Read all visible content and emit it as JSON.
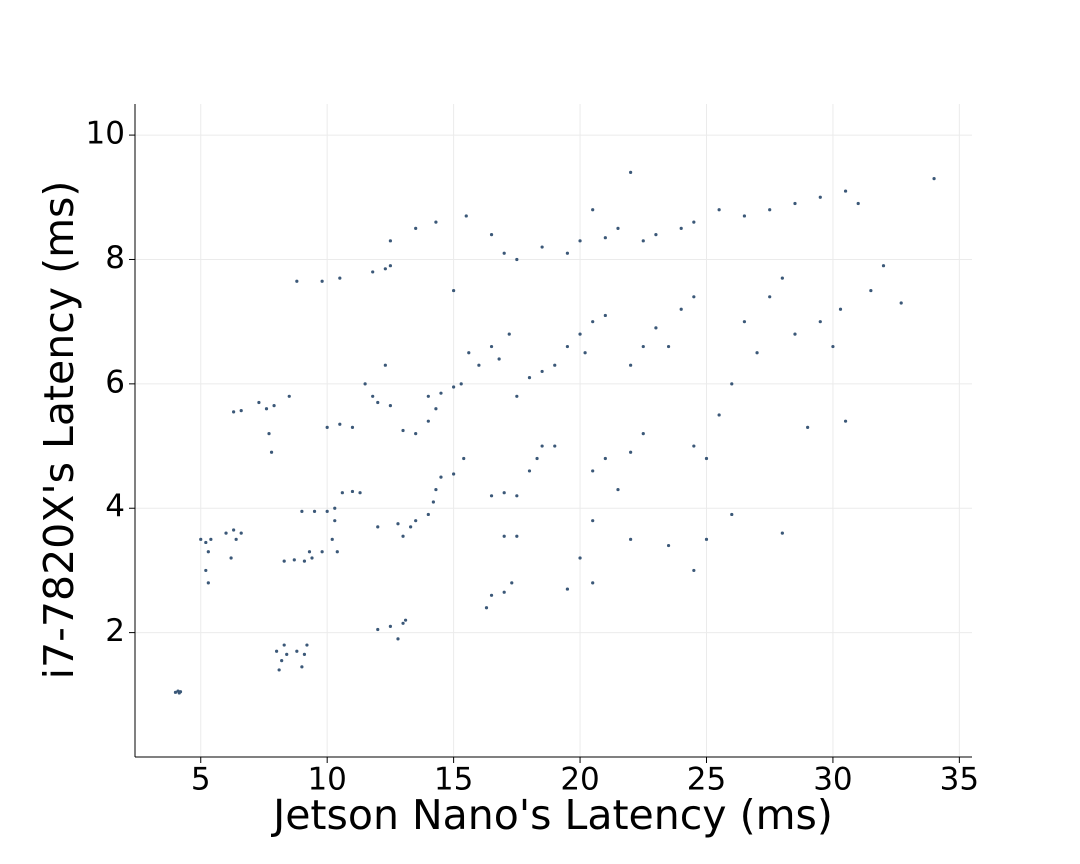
{
  "chart_data": {
    "type": "scatter",
    "x_label": "Jetson Nano's Latency (ms)",
    "y_label": "i7-7820X's Latency (ms)",
    "xlim": [
      2.4,
      35.5
    ],
    "ylim": [
      0,
      10.5
    ],
    "xticks": [
      5,
      10,
      15,
      20,
      25,
      30,
      35
    ],
    "yticks": [
      2,
      4,
      6,
      8,
      10
    ],
    "grid": true,
    "color": "#3b5878",
    "x": [
      4.0,
      4.1,
      4.2,
      4.15,
      5.0,
      5.2,
      5.4,
      5.3,
      5.2,
      5.3,
      6.0,
      6.3,
      6.6,
      6.2,
      6.4,
      6.3,
      6.6,
      7.3,
      7.6,
      7.9,
      7.7,
      7.8,
      8.5,
      8.0,
      8.2,
      8.4,
      8.1,
      8.3,
      8.8,
      9.1,
      9.2,
      9.0,
      8.3,
      8.7,
      9.1,
      9.4,
      9.3,
      9.8,
      9.0,
      9.5,
      10.0,
      10.3,
      10.2,
      10.4,
      10.3,
      10.6,
      11.0,
      11.3,
      8.8,
      9.8,
      10.5,
      10.0,
      10.5,
      11.0,
      11.5,
      12.0,
      12.5,
      12.3,
      11.8,
      12.5,
      12.3,
      11.8,
      12.5,
      12.5,
      13.0,
      12.0,
      13.1,
      12.8,
      12.0,
      12.8,
      13.3,
      13.0,
      13.5,
      13.5,
      13.0,
      14.0,
      14.0,
      14.2,
      14.5,
      15.0,
      15.4,
      14.3,
      14.0,
      14.5,
      15.0,
      15.3,
      14.3,
      16.0,
      15.6,
      16.5,
      16.8,
      17.2,
      13.5,
      14.3,
      15.5,
      16.5,
      17.0,
      17.5,
      15.0,
      16.5,
      17.0,
      16.3,
      17.3,
      17.0,
      17.5,
      16.5,
      17.0,
      17.5,
      18.0,
      18.3,
      18.5,
      19.0,
      17.5,
      18.0,
      18.5,
      19.0,
      19.5,
      20.0,
      20.5,
      21.0,
      20.2,
      18.5,
      19.5,
      20.0,
      21.0,
      20.5,
      22.0,
      21.5,
      19.5,
      20.5,
      20.0,
      20.5,
      21.0,
      22.0,
      22.5,
      21.5,
      20.5,
      22.0,
      22.5,
      23.0,
      23.5,
      24.0,
      22.0,
      24.5,
      22.5,
      23.0,
      24.0,
      24.5,
      25.5,
      26.5,
      27.5,
      28.5,
      29.5,
      30.5,
      31.0,
      24.5,
      25.0,
      25.5,
      26.0,
      26.5,
      27.0,
      27.5,
      28.0,
      28.5,
      29.5,
      30.0,
      23.5,
      24.5,
      25.0,
      26.0,
      28.0,
      30.5,
      29.0,
      32.0,
      32.7,
      34.0,
      31.5,
      30.3
    ],
    "values": [
      1.04,
      1.06,
      1.05,
      1.03,
      3.5,
      3.45,
      3.5,
      3.3,
      3.0,
      2.8,
      3.6,
      3.65,
      3.6,
      3.2,
      3.5,
      5.55,
      5.57,
      5.7,
      5.6,
      5.65,
      5.2,
      4.9,
      5.8,
      1.7,
      1.55,
      1.65,
      1.4,
      1.8,
      1.7,
      1.65,
      1.8,
      1.45,
      3.15,
      3.17,
      3.15,
      3.2,
      3.3,
      3.3,
      3.95,
      3.95,
      3.95,
      3.8,
      3.5,
      3.3,
      4.0,
      4.25,
      4.27,
      4.25,
      7.65,
      7.65,
      7.7,
      5.3,
      5.35,
      5.3,
      6.0,
      5.7,
      5.65,
      6.3,
      5.8,
      7.9,
      7.85,
      7.8,
      8.3,
      2.1,
      2.15,
      2.05,
      2.2,
      1.9,
      3.7,
      3.75,
      3.7,
      3.55,
      3.8,
      5.2,
      5.25,
      5.4,
      3.9,
      4.1,
      4.5,
      4.55,
      4.8,
      4.3,
      5.8,
      5.85,
      5.95,
      6.0,
      5.6,
      6.3,
      6.5,
      6.6,
      6.4,
      6.8,
      8.5,
      8.6,
      8.7,
      8.4,
      8.1,
      8.0,
      7.5,
      2.6,
      2.65,
      2.4,
      2.8,
      3.55,
      3.55,
      4.2,
      4.25,
      4.2,
      4.6,
      4.8,
      5.0,
      5.0,
      5.8,
      6.1,
      6.2,
      6.3,
      6.6,
      6.8,
      7.0,
      7.1,
      6.5,
      8.2,
      8.1,
      8.3,
      8.35,
      8.8,
      9.4,
      8.5,
      2.7,
      2.8,
      3.2,
      4.6,
      4.8,
      4.9,
      5.2,
      4.3,
      3.8,
      3.5,
      6.6,
      6.9,
      6.6,
      7.2,
      6.3,
      7.4,
      8.3,
      8.4,
      8.5,
      8.6,
      8.8,
      8.7,
      8.8,
      8.9,
      9.0,
      9.1,
      8.9,
      5.0,
      4.8,
      5.5,
      6.0,
      7.0,
      6.5,
      7.4,
      7.7,
      6.8,
      7.0,
      6.6,
      3.4,
      3.0,
      3.5,
      3.9,
      3.6,
      5.4,
      5.3,
      7.9,
      7.3,
      9.3,
      7.5,
      7.2
    ]
  }
}
